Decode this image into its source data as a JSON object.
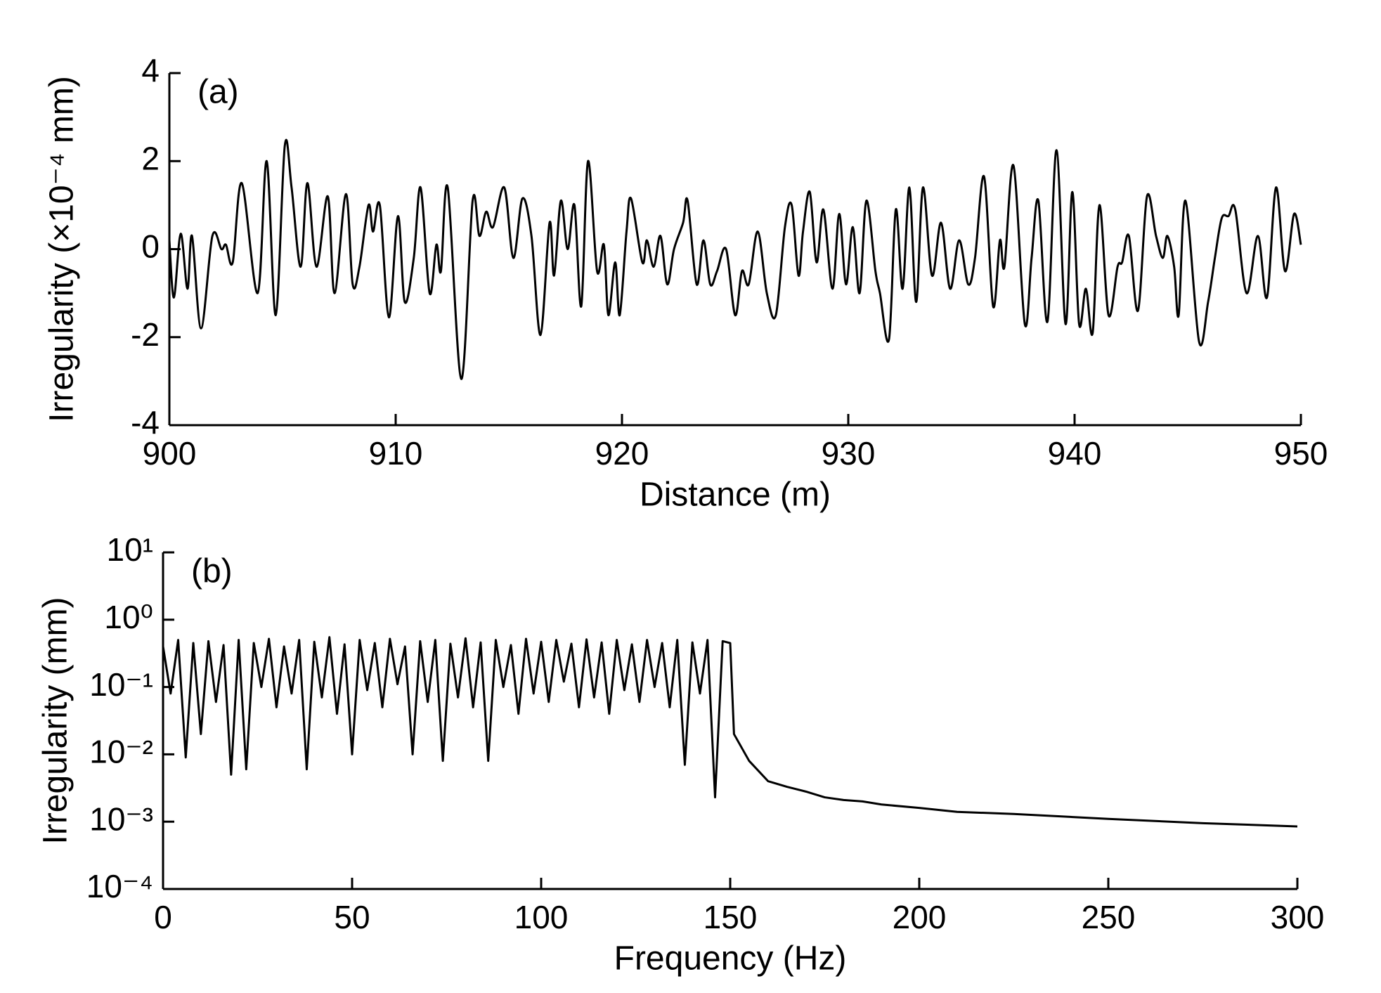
{
  "chart_data": [
    {
      "type": "line",
      "annotation": "(a)",
      "xlabel": "Distance (m)",
      "ylabel": "Irregularity (×10⁻⁴ mm)",
      "color": "#000000",
      "xlim": [
        900,
        950
      ],
      "xticks": [
        900,
        910,
        920,
        930,
        940,
        950
      ],
      "ylim": [
        -4,
        4
      ],
      "yticks": [
        -4,
        -2,
        0,
        2,
        4
      ],
      "x": [
        900.0,
        900.2,
        900.5,
        900.8,
        901.0,
        901.4,
        901.9,
        902.3,
        902.5,
        902.8,
        903.2,
        903.9,
        904.3,
        904.7,
        905.1,
        905.4,
        905.8,
        906.1,
        906.5,
        907.0,
        907.3,
        907.8,
        908.1,
        908.4,
        908.8,
        909.0,
        909.3,
        909.7,
        910.1,
        910.4,
        910.8,
        911.1,
        911.5,
        911.8,
        912.0,
        912.3,
        912.9,
        913.4,
        913.7,
        914.0,
        914.3,
        914.8,
        915.2,
        915.6,
        916.0,
        916.4,
        916.8,
        917.0,
        917.3,
        917.6,
        917.9,
        918.2,
        918.5,
        918.9,
        919.2,
        919.4,
        919.7,
        919.9,
        920.2,
        920.4,
        920.9,
        921.1,
        921.4,
        921.7,
        922.0,
        922.3,
        922.7,
        922.9,
        923.3,
        923.6,
        923.9,
        924.2,
        924.6,
        925.0,
        925.3,
        925.6,
        926.0,
        926.4,
        926.8,
        927.2,
        927.5,
        927.8,
        928.0,
        928.3,
        928.6,
        928.9,
        929.3,
        929.6,
        929.9,
        930.2,
        930.5,
        930.8,
        931.2,
        931.4,
        931.8,
        932.1,
        932.4,
        932.7,
        933.0,
        933.3,
        933.7,
        934.1,
        934.5,
        934.9,
        935.3,
        935.6,
        936.0,
        936.4,
        936.7,
        936.9,
        937.3,
        937.8,
        938.1,
        938.4,
        938.8,
        939.2,
        939.6,
        939.9,
        940.2,
        940.5,
        940.8,
        941.1,
        941.5,
        941.9,
        942.1,
        942.4,
        942.8,
        943.2,
        943.6,
        943.9,
        944.1,
        944.4,
        944.6,
        944.9,
        945.5,
        945.9,
        946.2,
        946.5,
        946.8,
        947.1,
        947.6,
        948.1,
        948.5,
        948.9,
        949.3,
        949.7,
        950.0
      ],
      "values": [
        0.2,
        -1.1,
        0.35,
        -0.9,
        0.3,
        -1.8,
        0.3,
        0.0,
        0.1,
        -0.3,
        1.5,
        -1.0,
        2.0,
        -1.5,
        2.35,
        1.4,
        -0.4,
        1.5,
        -0.4,
        1.2,
        -1.0,
        1.25,
        -0.8,
        -0.4,
        1.0,
        0.4,
        1.0,
        -1.55,
        0.75,
        -1.2,
        -0.2,
        1.4,
        -1.0,
        0.1,
        -0.5,
        1.4,
        -2.95,
        1.1,
        0.3,
        0.85,
        0.5,
        1.4,
        -0.2,
        1.15,
        0.3,
        -1.95,
        0.6,
        -0.6,
        1.1,
        0.0,
        1.0,
        -1.3,
        2.0,
        -0.5,
        0.1,
        -1.5,
        -0.3,
        -1.5,
        0.4,
        1.15,
        -0.3,
        0.2,
        -0.4,
        0.3,
        -0.8,
        0.0,
        0.6,
        1.1,
        -0.8,
        0.2,
        -0.8,
        -0.5,
        0.0,
        -1.5,
        -0.5,
        -0.8,
        0.4,
        -1.0,
        -1.5,
        0.5,
        1.0,
        -0.6,
        0.4,
        1.3,
        -0.3,
        0.9,
        -0.9,
        0.8,
        -0.8,
        0.5,
        -1.0,
        1.1,
        -0.5,
        -1.0,
        -2.05,
        0.9,
        -0.9,
        1.4,
        -1.2,
        1.4,
        -0.6,
        0.6,
        -0.9,
        0.2,
        -0.8,
        -0.2,
        1.65,
        -1.3,
        0.2,
        -0.4,
        1.9,
        -1.7,
        -0.2,
        1.1,
        -1.65,
        2.25,
        -1.7,
        1.3,
        -1.7,
        -0.9,
        -1.9,
        1.0,
        -1.5,
        -0.4,
        -0.3,
        0.3,
        -1.4,
        1.2,
        0.3,
        -0.2,
        0.3,
        -0.4,
        -1.5,
        1.1,
        -2.1,
        -1.2,
        -0.2,
        0.7,
        0.75,
        0.9,
        -1.0,
        0.3,
        -1.1,
        1.4,
        -0.5,
        0.8,
        0.1
      ]
    },
    {
      "type": "line",
      "annotation": "(b)",
      "xlabel": "Frequency (Hz)",
      "ylabel": "Irregularity (mm)",
      "color": "#000000",
      "yscale": "log",
      "xlim": [
        0,
        300
      ],
      "xticks": [
        0,
        50,
        100,
        150,
        200,
        250,
        300
      ],
      "ylim": [
        0.0001,
        10
      ],
      "yticks": [
        {
          "value": 0.0001,
          "label": "10⁻⁴"
        },
        {
          "value": 0.001,
          "label": "10⁻³"
        },
        {
          "value": 0.01,
          "label": "10⁻²"
        },
        {
          "value": 0.1,
          "label": "10⁻¹"
        },
        {
          "value": 1,
          "label": "10⁰"
        },
        {
          "value": 10,
          "label": "10¹"
        }
      ],
      "x": [
        0,
        2,
        4,
        6,
        8,
        10,
        12,
        14,
        16,
        18,
        20,
        22,
        24,
        26,
        28,
        30,
        32,
        34,
        36,
        38,
        40,
        42,
        44,
        46,
        48,
        50,
        52,
        54,
        56,
        58,
        60,
        62,
        64,
        66,
        68,
        70,
        72,
        74,
        76,
        78,
        80,
        82,
        84,
        86,
        88,
        90,
        92,
        94,
        96,
        98,
        100,
        102,
        104,
        106,
        108,
        110,
        112,
        114,
        116,
        118,
        120,
        122,
        124,
        126,
        128,
        130,
        132,
        134,
        136,
        138,
        140,
        142,
        144,
        146,
        148,
        150,
        151,
        155,
        160,
        165,
        170,
        175,
        180,
        185,
        190,
        200,
        210,
        225,
        250,
        275,
        300
      ],
      "values": [
        0.4,
        0.08,
        0.5,
        0.009,
        0.45,
        0.02,
        0.48,
        0.06,
        0.42,
        0.005,
        0.5,
        0.006,
        0.45,
        0.1,
        0.52,
        0.05,
        0.4,
        0.08,
        0.5,
        0.006,
        0.47,
        0.07,
        0.55,
        0.04,
        0.43,
        0.01,
        0.5,
        0.09,
        0.45,
        0.05,
        0.52,
        0.11,
        0.4,
        0.01,
        0.48,
        0.06,
        0.5,
        0.008,
        0.44,
        0.07,
        0.53,
        0.05,
        0.46,
        0.008,
        0.5,
        0.1,
        0.42,
        0.04,
        0.52,
        0.08,
        0.47,
        0.06,
        0.5,
        0.12,
        0.44,
        0.05,
        0.51,
        0.07,
        0.46,
        0.04,
        0.5,
        0.09,
        0.43,
        0.06,
        0.5,
        0.1,
        0.45,
        0.05,
        0.5,
        0.007,
        0.46,
        0.08,
        0.5,
        0.0023,
        0.48,
        0.45,
        0.02,
        0.008,
        0.004,
        0.0033,
        0.0028,
        0.0023,
        0.0021,
        0.002,
        0.0018,
        0.0016,
        0.0014,
        0.0013,
        0.0011,
        0.00095,
        0.00085
      ]
    }
  ]
}
